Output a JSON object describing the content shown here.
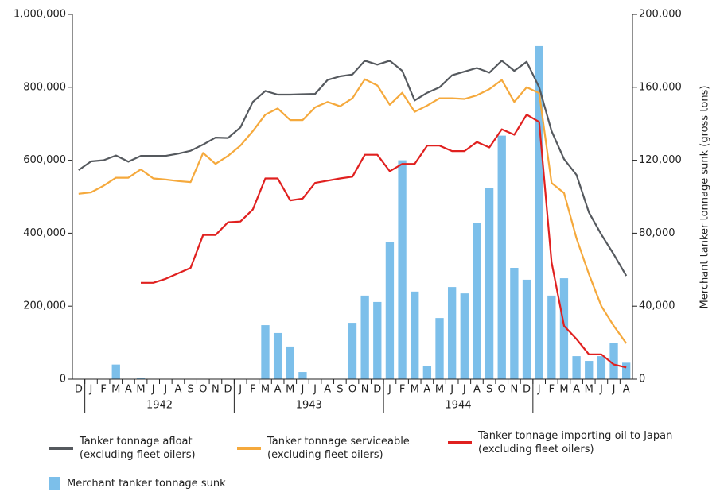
{
  "chart_data": {
    "type": "combo",
    "categories": [
      "D",
      "J",
      "F",
      "M",
      "A",
      "M",
      "J",
      "J",
      "A",
      "S",
      "O",
      "N",
      "D",
      "J",
      "F",
      "M",
      "A",
      "M",
      "J",
      "J",
      "A",
      "S",
      "O",
      "N",
      "D",
      "J",
      "F",
      "M",
      "A",
      "M",
      "J",
      "J",
      "A",
      "S",
      "O",
      "N",
      "D",
      "J",
      "F",
      "M",
      "A",
      "M",
      "J",
      "J",
      "A"
    ],
    "groups": [
      {
        "label": "1942",
        "from": 1,
        "to": 12
      },
      {
        "label": "1943",
        "from": 13,
        "to": 24
      },
      {
        "label": "1944",
        "from": 25,
        "to": 36
      }
    ],
    "ylim": [
      0,
      1000000
    ],
    "yticks": [
      0,
      {
        "value": 200000,
        "label": "200,000"
      },
      {
        "value": 400000,
        "label": "400,000"
      },
      {
        "value": 600000,
        "label": "600,000"
      },
      {
        "value": 800000,
        "label": "800,000"
      },
      {
        "value": 1000000,
        "label": "1,000,000"
      }
    ],
    "y2lim": [
      0,
      200000
    ],
    "y2ticks": [
      0,
      {
        "value": 40000,
        "label": "40,000"
      },
      {
        "value": 80000,
        "label": "80,000"
      },
      {
        "value": 120000,
        "label": "120,000"
      },
      {
        "value": 160000,
        "label": "160,000"
      },
      {
        "value": 200000,
        "label": "200,000"
      }
    ],
    "y2label": "Merchant tanker tonnage sunk (gross tons)",
    "series": [
      {
        "name": "Tanker tonnage afloat\n(excluding fleet oilers)",
        "type": "line",
        "color": "#55595e",
        "values": [
          573000,
          597000,
          600000,
          613000,
          596000,
          612000,
          612000,
          612000,
          618000,
          626000,
          643000,
          662000,
          661000,
          690000,
          760000,
          790000,
          780000,
          780000,
          781000,
          782000,
          820000,
          830000,
          835000,
          873000,
          862000,
          873000,
          845000,
          764000,
          785000,
          800000,
          833000,
          843000,
          853000,
          840000,
          873000,
          845000,
          870000,
          800000,
          680000,
          603000,
          560000,
          457000,
          396000,
          342000,
          283000
        ]
      },
      {
        "name": "Tanker tonnage serviceable\n(excluding fleet oilers)",
        "type": "line",
        "color": "#f5a93c",
        "values": [
          508000,
          512000,
          530000,
          552000,
          552000,
          575000,
          550000,
          547000,
          543000,
          540000,
          620000,
          590000,
          612000,
          640000,
          680000,
          725000,
          742000,
          710000,
          710000,
          745000,
          760000,
          748000,
          770000,
          822000,
          805000,
          752000,
          785000,
          733000,
          750000,
          770000,
          770000,
          768000,
          778000,
          795000,
          820000,
          760000,
          800000,
          784000,
          538000,
          510000,
          386000,
          288000,
          200000,
          146000,
          98000
        ]
      },
      {
        "name": "Tanker tonnage importing oil to Japan\n(excluding fleet oilers)",
        "type": "line",
        "color": "#e0201f",
        "values": [
          null,
          null,
          null,
          null,
          null,
          264000,
          264000,
          275000,
          290000,
          305000,
          395000,
          395000,
          430000,
          432000,
          465000,
          550000,
          550000,
          490000,
          495000,
          538000,
          544000,
          550000,
          555000,
          615000,
          615000,
          570000,
          590000,
          590000,
          640000,
          640000,
          625000,
          625000,
          650000,
          635000,
          685000,
          670000,
          725000,
          705000,
          320000,
          146000,
          110000,
          68000,
          68000,
          40000,
          32000
        ]
      },
      {
        "name": "Merchant tanker tonnage sunk",
        "type": "bar",
        "axis": "y2",
        "color": "#7cbfea",
        "values": [
          0,
          0,
          0,
          8000,
          0,
          500,
          0,
          0,
          0,
          0,
          0,
          0,
          0,
          0,
          0,
          29600,
          25300,
          17900,
          3900,
          0,
          0,
          0,
          30900,
          45800,
          42300,
          75000,
          120000,
          48000,
          7400,
          33500,
          50500,
          47000,
          85400,
          105000,
          133500,
          61000,
          54500,
          182600,
          45800,
          55300,
          12600,
          10000,
          12600,
          20000,
          9000
        ]
      }
    ]
  }
}
